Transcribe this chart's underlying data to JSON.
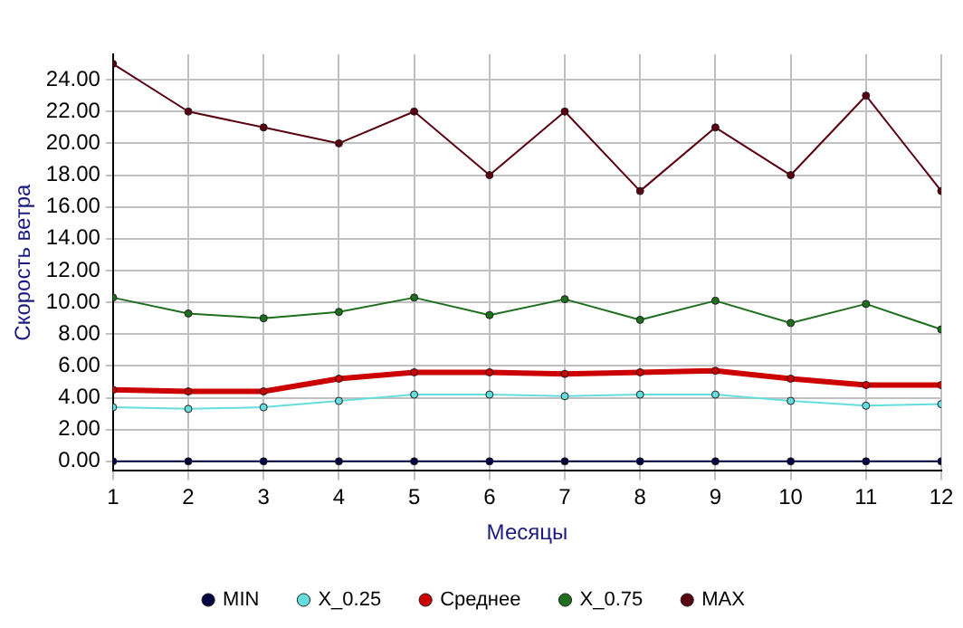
{
  "chart_data": {
    "type": "line",
    "xlabel": "Месяцы",
    "ylabel": "Скорость ветра",
    "x": [
      1,
      2,
      3,
      4,
      5,
      6,
      7,
      8,
      9,
      10,
      11,
      12
    ],
    "series": [
      {
        "name": "MIN",
        "color": "#000040",
        "values": [
          0,
          0,
          0,
          0,
          0,
          0,
          0,
          0,
          0,
          0,
          0,
          0
        ]
      },
      {
        "name": "X_0.25",
        "color": "#66dddd",
        "values": [
          3.4,
          3.3,
          3.4,
          3.8,
          4.2,
          4.2,
          4.1,
          4.2,
          4.2,
          3.8,
          3.5,
          3.6
        ]
      },
      {
        "name": "Среднее",
        "color": "#cc0000",
        "values": [
          4.5,
          4.4,
          4.4,
          5.2,
          5.6,
          5.6,
          5.5,
          5.6,
          5.7,
          5.2,
          4.8,
          4.8
        ]
      },
      {
        "name": "X_0.75",
        "color": "#1e6e1e",
        "values": [
          10.3,
          9.3,
          9.0,
          9.4,
          10.3,
          9.2,
          10.2,
          8.9,
          10.1,
          8.7,
          9.9,
          8.3
        ]
      },
      {
        "name": "MAX",
        "color": "#5a0010",
        "values": [
          25,
          22,
          21,
          20,
          22,
          18,
          22,
          17,
          21,
          18,
          23,
          17
        ]
      }
    ],
    "xlim": [
      1,
      12
    ],
    "xticks": [
      1,
      2,
      3,
      4,
      5,
      6,
      7,
      8,
      9,
      10,
      11,
      12
    ],
    "ylim": [
      -0.6,
      25.6
    ],
    "yticks": [
      {
        "value": 0,
        "label": "0.00"
      },
      {
        "value": 2,
        "label": "2.00"
      },
      {
        "value": 4,
        "label": "4.00"
      },
      {
        "value": 6,
        "label": "6.00"
      },
      {
        "value": 8,
        "label": "8.00"
      },
      {
        "value": 10,
        "label": "10.00"
      },
      {
        "value": 12,
        "label": "12.00"
      },
      {
        "value": 14,
        "label": "14.00"
      },
      {
        "value": 16,
        "label": "16.00"
      },
      {
        "value": 18,
        "label": "18.00"
      },
      {
        "value": 20,
        "label": "20.00"
      },
      {
        "value": 22,
        "label": "22.00"
      },
      {
        "value": 24,
        "label": "24.00"
      }
    ],
    "grid": true,
    "legend": "bottom",
    "marker": "circle",
    "line_style": "solid"
  }
}
